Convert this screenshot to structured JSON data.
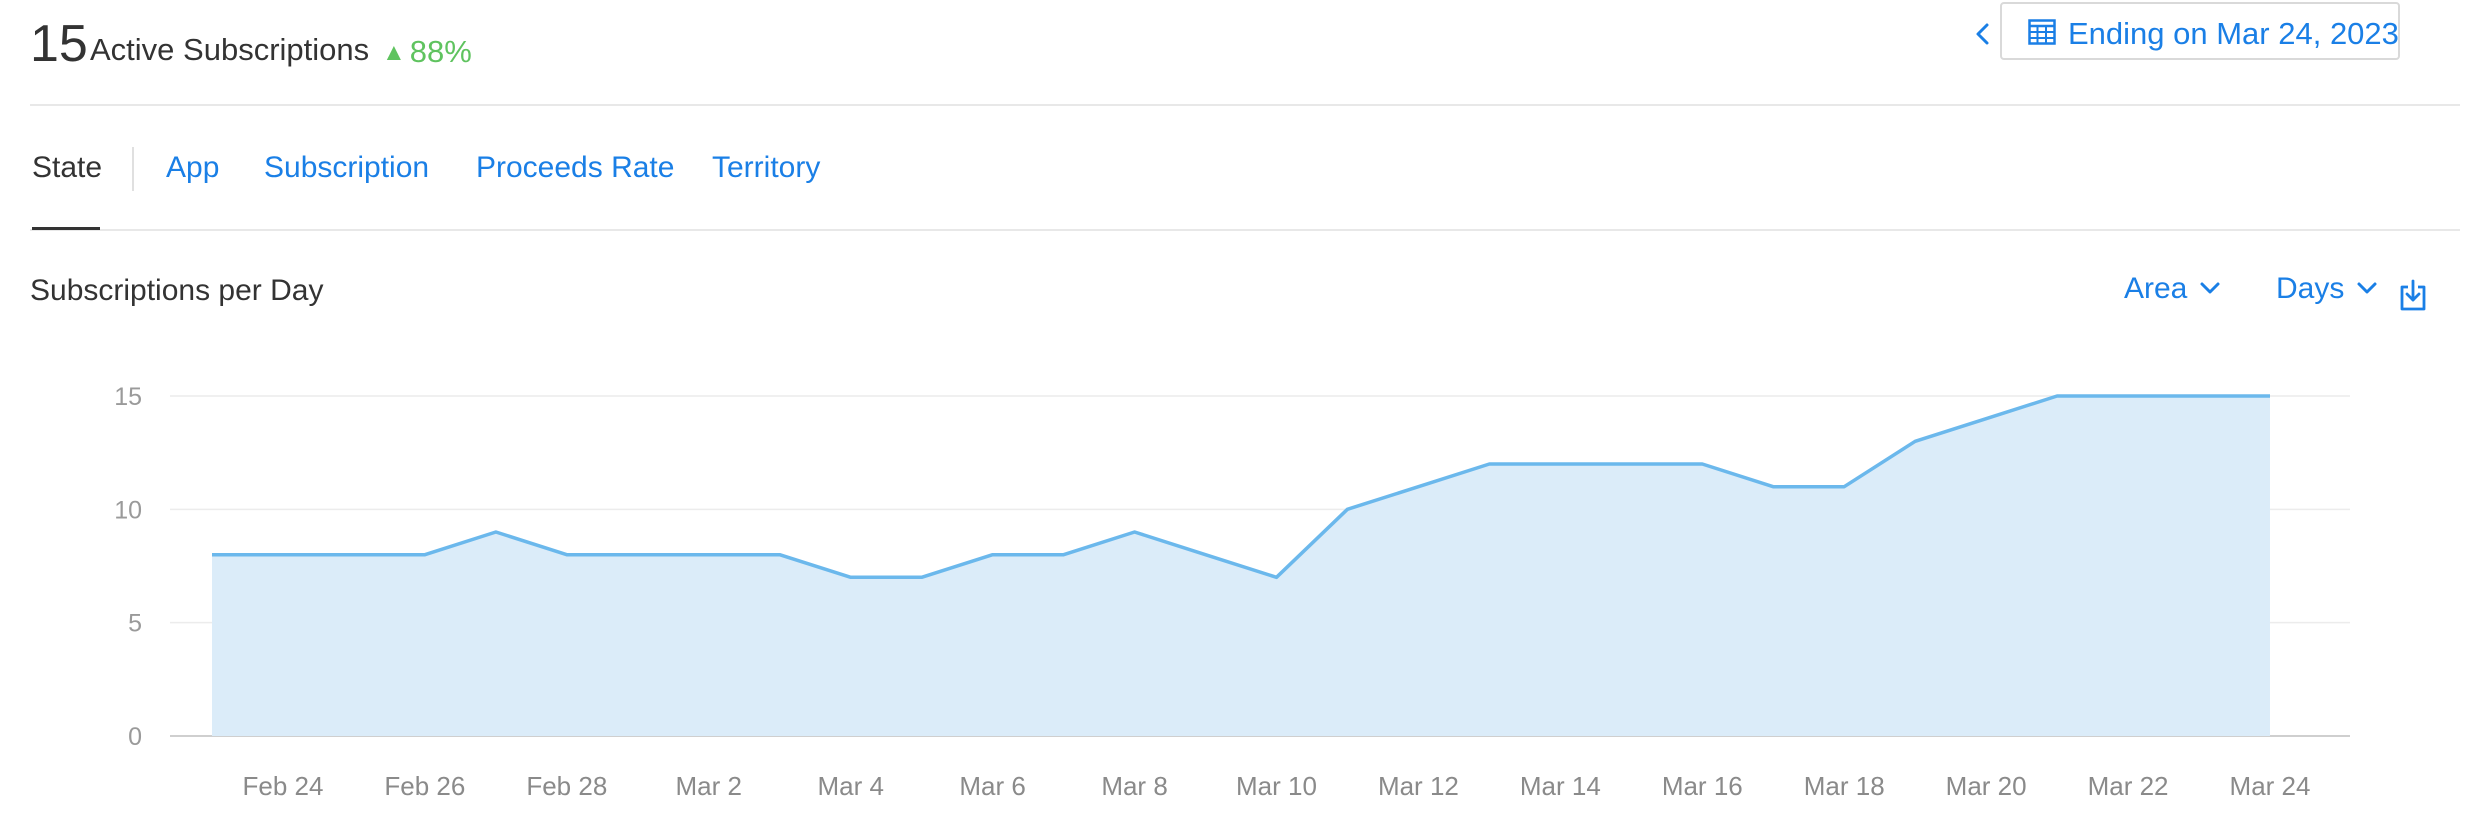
{
  "header": {
    "count": "15",
    "count_label": "Active Subscriptions",
    "delta": "88%",
    "date_range": "Ending on Mar 24, 2023"
  },
  "tabs": [
    {
      "label": "State",
      "active": true
    },
    {
      "label": "App"
    },
    {
      "label": "Subscription"
    },
    {
      "label": "Proceeds Rate"
    },
    {
      "label": "Territory"
    }
  ],
  "chart_section": {
    "title": "Subscriptions per Day",
    "chart_type_select": "Area",
    "period_select": "Days"
  },
  "colors": {
    "accent": "#1a7fe6",
    "positive": "#5fc35f",
    "line": "#6bb8ec",
    "fill": "#dbecf9"
  },
  "chart_data": {
    "type": "area",
    "title": "Subscriptions per Day",
    "x": [
      "Feb 23",
      "Feb 24",
      "Feb 25",
      "Feb 26",
      "Feb 27",
      "Feb 28",
      "Mar 1",
      "Mar 2",
      "Mar 3",
      "Mar 4",
      "Mar 5",
      "Mar 6",
      "Mar 7",
      "Mar 8",
      "Mar 9",
      "Mar 10",
      "Mar 11",
      "Mar 12",
      "Mar 13",
      "Mar 14",
      "Mar 15",
      "Mar 16",
      "Mar 17",
      "Mar 18",
      "Mar 19",
      "Mar 20",
      "Mar 21",
      "Mar 22",
      "Mar 23",
      "Mar 24"
    ],
    "values": [
      8,
      8,
      8,
      8,
      9,
      8,
      8,
      8,
      8,
      7,
      7,
      8,
      8,
      9,
      8,
      7,
      10,
      11,
      12,
      12,
      12,
      12,
      11,
      11,
      13,
      14,
      15,
      15,
      15,
      15
    ],
    "x_tick_labels": [
      "Feb 24",
      "Feb 26",
      "Feb 28",
      "Mar 2",
      "Mar 4",
      "Mar 6",
      "Mar 8",
      "Mar 10",
      "Mar 12",
      "Mar 14",
      "Mar 16",
      "Mar 18",
      "Mar 20",
      "Mar 22",
      "Mar 24"
    ],
    "y_ticks": [
      0,
      5,
      10,
      15
    ],
    "ylim": [
      0,
      15
    ],
    "grid": true,
    "legend": "none"
  }
}
